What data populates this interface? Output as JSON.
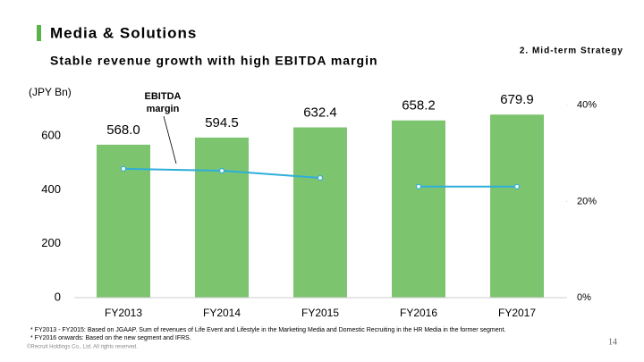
{
  "header": {
    "title": "Media & Solutions",
    "section": "2. Mid-term Strategy",
    "subtitle": "Stable revenue growth with high EBITDA margin"
  },
  "chart_data": {
    "type": "bar",
    "y_label": "(JPY Bn)",
    "annotation": [
      "EBITDA",
      "margin"
    ],
    "categories": [
      "FY2013",
      "FY2014",
      "FY2015",
      "FY2016",
      "FY2017"
    ],
    "values": [
      568.0,
      594.5,
      632.4,
      658.2,
      679.9
    ],
    "value_labels": [
      "568.0",
      "594.5",
      "632.4",
      "658.2",
      "679.9"
    ],
    "color": "#7dc46f",
    "ylim": [
      0,
      800
    ],
    "yticks": [
      0,
      200,
      400,
      600
    ],
    "y2lim": [
      0,
      44.8
    ],
    "y2ticks": [
      {
        "value": 0,
        "label": "0%"
      },
      {
        "value": 20,
        "label": "20%"
      },
      {
        "value": 40,
        "label": "40%"
      }
    ],
    "series": [
      {
        "name": "EBITDA margin",
        "color": "#2eaed8",
        "axis": "y2",
        "values": [
          26.8,
          26.4,
          24.9,
          null,
          null
        ]
      },
      {
        "color": "#2eaed8",
        "axis": "y2",
        "values": [
          null,
          null,
          null,
          23.1,
          23.1
        ]
      }
    ]
  },
  "footer": {
    "notes": [
      "* FY2013 - FY2015: Based on JGAAP. Sum of revenues of Life Event and Lifestyle in the Marketing Media and Domestic Recruiting in the HR Media in the former segment.",
      "* FY2016 onwards: Based on the new segment and IFRS."
    ],
    "copyright": "©Recruit Holdings Co., Ltd. All rights reserved.",
    "page": "14"
  }
}
